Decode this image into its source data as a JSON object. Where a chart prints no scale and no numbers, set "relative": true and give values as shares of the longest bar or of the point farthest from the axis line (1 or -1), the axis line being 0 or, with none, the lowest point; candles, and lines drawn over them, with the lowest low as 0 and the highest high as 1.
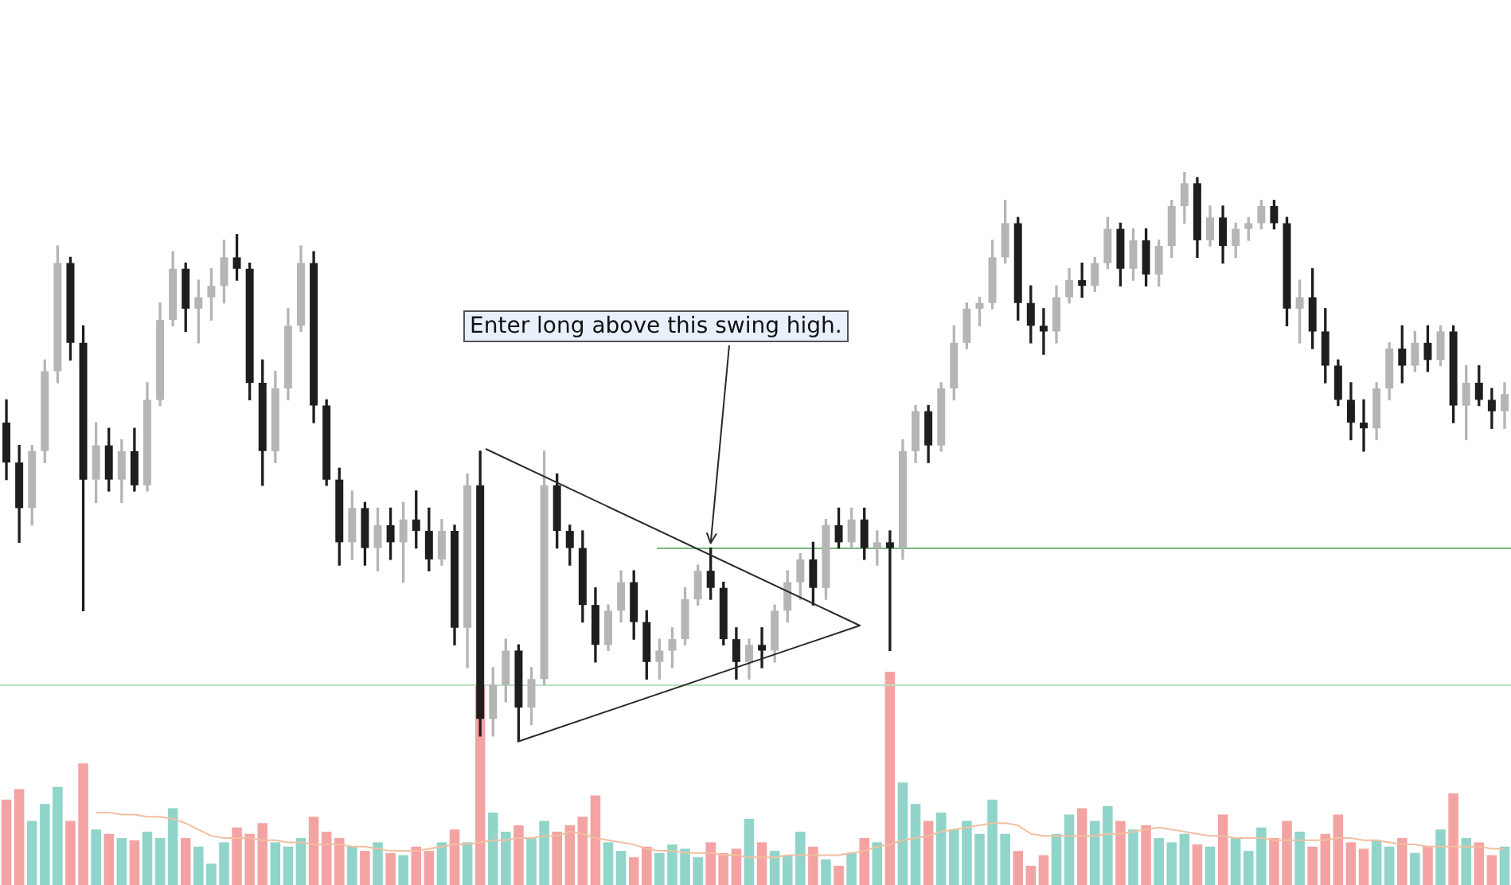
{
  "chart_data": [
    {
      "type": "candlestick",
      "relative": true,
      "tick_labels": false,
      "categories": [
        null,
        null,
        null,
        null,
        null,
        null,
        null,
        null,
        null,
        null,
        null,
        null,
        null,
        null,
        null,
        null,
        null,
        null,
        null,
        null,
        null,
        null,
        null,
        null,
        null,
        null,
        null,
        null,
        null,
        null,
        null,
        null,
        null,
        null,
        null,
        null,
        null,
        null,
        null,
        null,
        null,
        null,
        null,
        null,
        null,
        null,
        null,
        null,
        null,
        null,
        null,
        null,
        null,
        null,
        null,
        null,
        null,
        null,
        null,
        null,
        null,
        null,
        null,
        null,
        null,
        null,
        null,
        null,
        null,
        null,
        null,
        null,
        null,
        null,
        null,
        null,
        null,
        null,
        null,
        null,
        null,
        null,
        null,
        null,
        null,
        null,
        null,
        null,
        null,
        null,
        null,
        null,
        null,
        null,
        null,
        null,
        null,
        null,
        null,
        null,
        null,
        null,
        null,
        null,
        null,
        null,
        null,
        null,
        null,
        null,
        null,
        null,
        null,
        null,
        null,
        null,
        null,
        null
      ],
      "ohlc": [
        [
          0.56,
          0.6,
          0.46,
          0.49
        ],
        [
          0.49,
          0.52,
          0.35,
          0.41
        ],
        [
          0.41,
          0.52,
          0.38,
          0.51
        ],
        [
          0.51,
          0.67,
          0.49,
          0.65
        ],
        [
          0.65,
          0.87,
          0.63,
          0.84
        ],
        [
          0.84,
          0.85,
          0.67,
          0.7
        ],
        [
          0.7,
          0.73,
          0.23,
          0.46
        ],
        [
          0.46,
          0.56,
          0.42,
          0.52
        ],
        [
          0.52,
          0.55,
          0.44,
          0.46
        ],
        [
          0.46,
          0.53,
          0.42,
          0.51
        ],
        [
          0.51,
          0.55,
          0.44,
          0.45
        ],
        [
          0.45,
          0.63,
          0.44,
          0.6
        ],
        [
          0.6,
          0.77,
          0.59,
          0.74
        ],
        [
          0.74,
          0.86,
          0.73,
          0.83
        ],
        [
          0.83,
          0.84,
          0.72,
          0.76
        ],
        [
          0.76,
          0.81,
          0.7,
          0.78
        ],
        [
          0.78,
          0.83,
          0.74,
          0.8
        ],
        [
          0.8,
          0.88,
          0.77,
          0.85
        ],
        [
          0.85,
          0.89,
          0.81,
          0.83
        ],
        [
          0.83,
          0.84,
          0.6,
          0.63
        ],
        [
          0.63,
          0.67,
          0.45,
          0.51
        ],
        [
          0.51,
          0.65,
          0.49,
          0.62
        ],
        [
          0.62,
          0.76,
          0.6,
          0.73
        ],
        [
          0.73,
          0.87,
          0.72,
          0.84
        ],
        [
          0.84,
          0.86,
          0.56,
          0.59
        ],
        [
          0.59,
          0.6,
          0.45,
          0.46
        ],
        [
          0.46,
          0.48,
          0.31,
          0.35
        ],
        [
          0.35,
          0.44,
          0.32,
          0.41
        ],
        [
          0.41,
          0.42,
          0.31,
          0.34
        ],
        [
          0.34,
          0.41,
          0.3,
          0.38
        ],
        [
          0.38,
          0.41,
          0.32,
          0.35
        ],
        [
          0.35,
          0.42,
          0.28,
          0.39
        ],
        [
          0.39,
          0.44,
          0.34,
          0.37
        ],
        [
          0.37,
          0.41,
          0.3,
          0.32
        ],
        [
          0.32,
          0.39,
          0.31,
          0.37
        ],
        [
          0.37,
          0.38,
          0.17,
          0.2
        ],
        [
          0.2,
          0.47,
          0.13,
          0.45
        ],
        [
          0.45,
          0.51,
          0.01,
          0.04
        ],
        [
          0.04,
          0.13,
          0.01,
          0.1
        ],
        [
          0.1,
          0.18,
          0.07,
          0.16
        ],
        [
          0.16,
          0.17,
          0,
          0.06
        ],
        [
          0.06,
          0.13,
          0.03,
          0.11
        ],
        [
          0.11,
          0.51,
          0.1,
          0.45
        ],
        [
          0.45,
          0.47,
          0.34,
          0.37
        ],
        [
          0.37,
          0.38,
          0.31,
          0.34
        ],
        [
          0.34,
          0.37,
          0.21,
          0.24
        ],
        [
          0.24,
          0.27,
          0.14,
          0.17
        ],
        [
          0.17,
          0.24,
          0.16,
          0.23
        ],
        [
          0.23,
          0.3,
          0.21,
          0.28
        ],
        [
          0.28,
          0.3,
          0.18,
          0.21
        ],
        [
          0.21,
          0.23,
          0.11,
          0.14
        ],
        [
          0.14,
          0.18,
          0.11,
          0.16
        ],
        [
          0.16,
          0.2,
          0.13,
          0.18
        ],
        [
          0.18,
          0.27,
          0.17,
          0.25
        ],
        [
          0.25,
          0.31,
          0.24,
          0.3
        ],
        [
          0.3,
          0.34,
          0.25,
          0.27
        ],
        [
          0.27,
          0.28,
          0.17,
          0.18
        ],
        [
          0.18,
          0.2,
          0.11,
          0.14
        ],
        [
          0.14,
          0.18,
          0.11,
          0.17
        ],
        [
          0.17,
          0.2,
          0.13,
          0.16
        ],
        [
          0.16,
          0.24,
          0.14,
          0.23
        ],
        [
          0.23,
          0.3,
          0.21,
          0.28
        ],
        [
          0.28,
          0.33,
          0.25,
          0.32
        ],
        [
          0.32,
          0.35,
          0.24,
          0.27
        ],
        [
          0.27,
          0.39,
          0.25,
          0.38
        ],
        [
          0.38,
          0.41,
          0.34,
          0.35
        ],
        [
          0.35,
          0.41,
          0.34,
          0.39
        ],
        [
          0.39,
          0.41,
          0.32,
          0.34
        ],
        [
          0.34,
          0.37,
          0.31,
          0.35
        ],
        [
          0.35,
          0.37,
          0.16,
          0.34
        ],
        [
          0.34,
          0.53,
          0.32,
          0.51
        ],
        [
          0.51,
          0.59,
          0.49,
          0.58
        ],
        [
          0.58,
          0.59,
          0.49,
          0.52
        ],
        [
          0.52,
          0.63,
          0.51,
          0.62
        ],
        [
          0.62,
          0.73,
          0.6,
          0.7
        ],
        [
          0.7,
          0.77,
          0.69,
          0.76
        ],
        [
          0.76,
          0.78,
          0.73,
          0.77
        ],
        [
          0.77,
          0.88,
          0.76,
          0.85
        ],
        [
          0.85,
          0.95,
          0.84,
          0.91
        ],
        [
          0.91,
          0.92,
          0.74,
          0.77
        ],
        [
          0.77,
          0.8,
          0.7,
          0.73
        ],
        [
          0.73,
          0.76,
          0.68,
          0.72
        ],
        [
          0.72,
          0.8,
          0.7,
          0.78
        ],
        [
          0.78,
          0.83,
          0.77,
          0.81
        ],
        [
          0.81,
          0.84,
          0.78,
          0.8
        ],
        [
          0.8,
          0.85,
          0.79,
          0.84
        ],
        [
          0.84,
          0.92,
          0.83,
          0.9
        ],
        [
          0.9,
          0.91,
          0.8,
          0.83
        ],
        [
          0.83,
          0.9,
          0.81,
          0.88
        ],
        [
          0.88,
          0.9,
          0.8,
          0.82
        ],
        [
          0.82,
          0.88,
          0.8,
          0.87
        ],
        [
          0.87,
          0.95,
          0.85,
          0.94
        ],
        [
          0.94,
          1,
          0.91,
          0.98
        ],
        [
          0.98,
          0.99,
          0.85,
          0.88
        ],
        [
          0.88,
          0.94,
          0.87,
          0.92
        ],
        [
          0.92,
          0.94,
          0.84,
          0.87
        ],
        [
          0.87,
          0.91,
          0.85,
          0.9
        ],
        [
          0.9,
          0.92,
          0.88,
          0.91
        ],
        [
          0.91,
          0.95,
          0.9,
          0.94
        ],
        [
          0.94,
          0.95,
          0.9,
          0.91
        ],
        [
          0.91,
          0.92,
          0.73,
          0.76
        ],
        [
          0.76,
          0.81,
          0.7,
          0.78
        ],
        [
          0.78,
          0.83,
          0.69,
          0.72
        ],
        [
          0.72,
          0.76,
          0.63,
          0.66
        ],
        [
          0.66,
          0.67,
          0.59,
          0.6
        ],
        [
          0.6,
          0.63,
          0.53,
          0.56
        ],
        [
          0.56,
          0.6,
          0.51,
          0.55
        ],
        [
          0.55,
          0.63,
          0.53,
          0.62
        ],
        [
          0.62,
          0.7,
          0.6,
          0.69
        ],
        [
          0.69,
          0.73,
          0.63,
          0.66
        ],
        [
          0.66,
          0.72,
          0.65,
          0.7
        ],
        [
          0.7,
          0.73,
          0.65,
          0.67
        ],
        [
          0.67,
          0.73,
          0.66,
          0.72
        ],
        [
          0.72,
          0.73,
          0.56,
          0.59
        ],
        [
          0.59,
          0.66,
          0.53,
          0.63
        ],
        [
          0.63,
          0.66,
          0.59,
          0.6
        ],
        [
          0.6,
          0.62,
          0.55,
          0.58
        ],
        [
          0.58,
          0.63,
          0.55,
          0.61
        ]
      ],
      "colors": [
        "#1e1e1e",
        "#1e1e1e",
        "#b5b5b5",
        "#b5b5b5",
        "#b5b5b5",
        "#1e1e1e",
        "#1e1e1e",
        "#b5b5b5",
        "#1e1e1e",
        "#b5b5b5",
        "#1e1e1e",
        "#b5b5b5",
        "#b5b5b5",
        "#b5b5b5",
        "#1e1e1e",
        "#b5b5b5",
        "#b5b5b5",
        "#b5b5b5",
        "#1e1e1e",
        "#1e1e1e",
        "#1e1e1e",
        "#b5b5b5",
        "#b5b5b5",
        "#b5b5b5",
        "#1e1e1e",
        "#1e1e1e",
        "#1e1e1e",
        "#b5b5b5",
        "#1e1e1e",
        "#b5b5b5",
        "#1e1e1e",
        "#b5b5b5",
        "#1e1e1e",
        "#1e1e1e",
        "#b5b5b5",
        "#1e1e1e",
        "#b5b5b5",
        "#1e1e1e",
        "#b5b5b5",
        "#b5b5b5",
        "#1e1e1e",
        "#b5b5b5",
        "#b5b5b5",
        "#1e1e1e",
        "#1e1e1e",
        "#1e1e1e",
        "#1e1e1e",
        "#b5b5b5",
        "#b5b5b5",
        "#1e1e1e",
        "#1e1e1e",
        "#b5b5b5",
        "#b5b5b5",
        "#b5b5b5",
        "#b5b5b5",
        "#1e1e1e",
        "#1e1e1e",
        "#1e1e1e",
        "#b5b5b5",
        "#1e1e1e",
        "#b5b5b5",
        "#b5b5b5",
        "#b5b5b5",
        "#1e1e1e",
        "#b5b5b5",
        "#1e1e1e",
        "#b5b5b5",
        "#1e1e1e",
        "#b5b5b5",
        "#1e1e1e",
        "#b5b5b5",
        "#b5b5b5",
        "#1e1e1e",
        "#b5b5b5",
        "#b5b5b5",
        "#b5b5b5",
        "#b5b5b5",
        "#b5b5b5",
        "#b5b5b5",
        "#1e1e1e",
        "#1e1e1e",
        "#1e1e1e",
        "#b5b5b5",
        "#b5b5b5",
        "#1e1e1e",
        "#b5b5b5",
        "#b5b5b5",
        "#1e1e1e",
        "#b5b5b5",
        "#1e1e1e",
        "#b5b5b5",
        "#b5b5b5",
        "#b5b5b5",
        "#1e1e1e",
        "#b5b5b5",
        "#1e1e1e",
        "#b5b5b5",
        "#b5b5b5",
        "#b5b5b5",
        "#1e1e1e",
        "#1e1e1e",
        "#b5b5b5",
        "#1e1e1e",
        "#1e1e1e",
        "#1e1e1e",
        "#1e1e1e",
        "#1e1e1e",
        "#b5b5b5",
        "#b5b5b5",
        "#1e1e1e",
        "#b5b5b5",
        "#1e1e1e",
        "#b5b5b5",
        "#1e1e1e",
        "#b5b5b5",
        "#1e1e1e",
        "#1e1e1e",
        "#b5b5b5"
      ],
      "annotations": [
        "Enter long above this swing high."
      ],
      "ref_lines": [
        {
          "axis": "y",
          "value": 0.34,
          "color": "#79b77c"
        },
        {
          "axis": "y",
          "value": 0.1,
          "color": "#b9e0bb"
        }
      ]
    },
    {
      "type": "bar",
      "relative": true,
      "tick_labels": false,
      "categories": [
        null,
        null,
        null,
        null,
        null,
        null,
        null,
        null,
        null,
        null,
        null,
        null,
        null,
        null,
        null,
        null,
        null,
        null,
        null,
        null,
        null,
        null,
        null,
        null,
        null,
        null,
        null,
        null,
        null,
        null,
        null,
        null,
        null,
        null,
        null,
        null,
        null,
        null,
        null,
        null,
        null,
        null,
        null,
        null,
        null,
        null,
        null,
        null,
        null,
        null,
        null,
        null,
        null,
        null,
        null,
        null,
        null,
        null,
        null,
        null,
        null,
        null,
        null,
        null,
        null,
        null,
        null,
        null,
        null,
        null,
        null,
        null,
        null,
        null,
        null,
        null,
        null,
        null,
        null,
        null,
        null,
        null,
        null,
        null,
        null,
        null,
        null,
        null,
        null,
        null,
        null,
        null,
        null,
        null,
        null,
        null,
        null,
        null,
        null,
        null,
        null,
        null,
        null,
        null,
        null,
        null,
        null,
        null,
        null,
        null,
        null,
        null,
        null,
        null,
        null,
        null,
        null,
        null
      ],
      "series": [
        {
          "type": "bar",
          "values": [
            0.4,
            0.45,
            0.3,
            0.38,
            0.46,
            0.3,
            0.57,
            0.26,
            0.24,
            0.22,
            0.21,
            0.25,
            0.22,
            0.36,
            0.22,
            0.18,
            0.1,
            0.2,
            0.27,
            0.24,
            0.29,
            0.2,
            0.18,
            0.22,
            0.32,
            0.25,
            0.22,
            0.18,
            0.16,
            0.2,
            0.15,
            0.14,
            0.18,
            0.16,
            0.2,
            0.26,
            0.2,
            0.94,
            0.34,
            0.25,
            0.28,
            0.22,
            0.3,
            0.25,
            0.28,
            0.32,
            0.42,
            0.2,
            0.16,
            0.13,
            0.18,
            0.15,
            0.19,
            0.17,
            0.13,
            0.2,
            0.15,
            0.17,
            0.31,
            0.2,
            0.16,
            0.14,
            0.25,
            0.18,
            0.12,
            0.09,
            0.15,
            0.22,
            0.2,
            1,
            0.48,
            0.38,
            0.3,
            0.34,
            0.26,
            0.3,
            0.24,
            0.4,
            0.24,
            0.16,
            0.09,
            0.14,
            0.24,
            0.33,
            0.36,
            0.3,
            0.37,
            0.3,
            0.26,
            0.28,
            0.22,
            0.2,
            0.24,
            0.19,
            0.18,
            0.33,
            0.22,
            0.16,
            0.27,
            0.22,
            0.3,
            0.25,
            0.18,
            0.24,
            0.33,
            0.2,
            0.17,
            0.21,
            0.18,
            0.22,
            0.15,
            0.18,
            0.26,
            0.43,
            0.22,
            0.2,
            0.14,
            0.18
          ],
          "colors": [
            "#f4a3a3",
            "#f4a3a3",
            "#90d4ca",
            "#90d4ca",
            "#90d4ca",
            "#f4a3a3",
            "#f4a3a3",
            "#90d4ca",
            "#f4a3a3",
            "#90d4ca",
            "#f4a3a3",
            "#90d4ca",
            "#90d4ca",
            "#90d4ca",
            "#f4a3a3",
            "#90d4ca",
            "#90d4ca",
            "#90d4ca",
            "#f4a3a3",
            "#f4a3a3",
            "#f4a3a3",
            "#90d4ca",
            "#90d4ca",
            "#90d4ca",
            "#f4a3a3",
            "#f4a3a3",
            "#f4a3a3",
            "#90d4ca",
            "#f4a3a3",
            "#90d4ca",
            "#f4a3a3",
            "#90d4ca",
            "#f4a3a3",
            "#f4a3a3",
            "#90d4ca",
            "#f4a3a3",
            "#90d4ca",
            "#f4a3a3",
            "#90d4ca",
            "#90d4ca",
            "#f4a3a3",
            "#90d4ca",
            "#90d4ca",
            "#f4a3a3",
            "#f4a3a3",
            "#f4a3a3",
            "#f4a3a3",
            "#90d4ca",
            "#90d4ca",
            "#f4a3a3",
            "#f4a3a3",
            "#90d4ca",
            "#90d4ca",
            "#90d4ca",
            "#90d4ca",
            "#f4a3a3",
            "#f4a3a3",
            "#f4a3a3",
            "#90d4ca",
            "#f4a3a3",
            "#90d4ca",
            "#90d4ca",
            "#90d4ca",
            "#f4a3a3",
            "#90d4ca",
            "#f4a3a3",
            "#90d4ca",
            "#f4a3a3",
            "#90d4ca",
            "#f4a3a3",
            "#90d4ca",
            "#90d4ca",
            "#f4a3a3",
            "#90d4ca",
            "#90d4ca",
            "#90d4ca",
            "#90d4ca",
            "#90d4ca",
            "#90d4ca",
            "#f4a3a3",
            "#f4a3a3",
            "#f4a3a3",
            "#90d4ca",
            "#90d4ca",
            "#f4a3a3",
            "#90d4ca",
            "#90d4ca",
            "#f4a3a3",
            "#90d4ca",
            "#f4a3a3",
            "#90d4ca",
            "#90d4ca",
            "#90d4ca",
            "#f4a3a3",
            "#90d4ca",
            "#f4a3a3",
            "#90d4ca",
            "#90d4ca",
            "#90d4ca",
            "#f4a3a3",
            "#f4a3a3",
            "#90d4ca",
            "#f4a3a3",
            "#f4a3a3",
            "#f4a3a3",
            "#f4a3a3",
            "#f4a3a3",
            "#90d4ca",
            "#90d4ca",
            "#f4a3a3",
            "#90d4ca",
            "#f4a3a3",
            "#90d4ca",
            "#f4a3a3",
            "#90d4ca",
            "#f4a3a3",
            "#f4a3a3",
            "#90d4ca"
          ]
        },
        {
          "type": "line",
          "color": "#f2bfa0",
          "values": [
            null,
            null,
            null,
            null,
            null,
            null,
            null,
            0.34,
            0.34,
            0.33,
            0.33,
            0.32,
            0.32,
            0.31,
            0.29,
            0.26,
            0.23,
            0.22,
            0.22,
            0.22,
            0.21,
            0.21,
            0.2,
            0.2,
            0.19,
            0.19,
            0.19,
            0.18,
            0.18,
            0.17,
            0.16,
            0.16,
            0.16,
            0.17,
            0.18,
            0.19,
            0.19,
            0.2,
            0.21,
            0.21,
            0.22,
            0.22,
            0.23,
            0.23,
            0.25,
            0.24,
            0.22,
            0.21,
            0.2,
            0.19,
            0.17,
            0.16,
            0.16,
            0.15,
            0.15,
            0.15,
            0.14,
            0.14,
            0.13,
            0.13,
            0.13,
            0.14,
            0.14,
            0.14,
            0.14,
            0.14,
            0.15,
            0.16,
            0.18,
            0.19,
            0.21,
            0.22,
            0.23,
            0.25,
            0.26,
            0.27,
            0.28,
            0.29,
            0.29,
            0.28,
            0.24,
            0.23,
            0.23,
            0.23,
            0.23,
            0.23,
            0.24,
            0.24,
            0.25,
            0.26,
            0.27,
            0.26,
            0.25,
            0.24,
            0.23,
            0.23,
            0.22,
            0.22,
            0.22,
            0.21,
            0.21,
            0.21,
            0.21,
            0.21,
            0.22,
            0.22,
            0.21,
            0.21,
            0.2,
            0.19,
            0.19,
            0.18,
            0.18,
            0.18,
            0.18,
            0.18,
            0.17,
            0.17
          ]
        }
      ]
    }
  ]
}
